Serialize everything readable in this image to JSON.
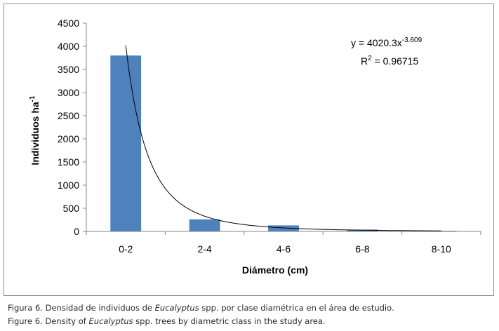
{
  "chart_data": {
    "type": "bar",
    "categories": [
      "0-2",
      "2-4",
      "4-6",
      "6-8",
      "8-10"
    ],
    "values": [
      3800,
      260,
      130,
      40,
      15
    ],
    "xlabel": "Diámetro (cm)",
    "ylabel_main": "Individuos  ha",
    "ylabel_sup": "-1",
    "ylim": [
      0,
      4500
    ],
    "yticks": [
      0,
      500,
      1000,
      1500,
      2000,
      2500,
      3000,
      3500,
      4000,
      4500
    ],
    "grid": false,
    "bar_color": "#4f81bd",
    "trendline": {
      "type": "power",
      "coefficient": 4020.3,
      "exponent": -3.609,
      "x_start": 1,
      "x_end": 5,
      "color": "#000000",
      "equation_prefix": "y = 4020.3x",
      "equation_sup": "-3.609",
      "r2_prefix": "R",
      "r2_sup": "2",
      "r2_suffix": " = 0.96715"
    }
  },
  "caption": {
    "es_prefix": "Figura 6. Densidad de individuos de ",
    "es_italic": "Eucalyptus",
    "es_suffix": " spp. por clase diamétrica en el área de estudio.",
    "en_prefix": "Figure 6. Density of ",
    "en_italic": "Eucalyptus",
    "en_suffix": " spp. trees by diametric class in the study area."
  }
}
